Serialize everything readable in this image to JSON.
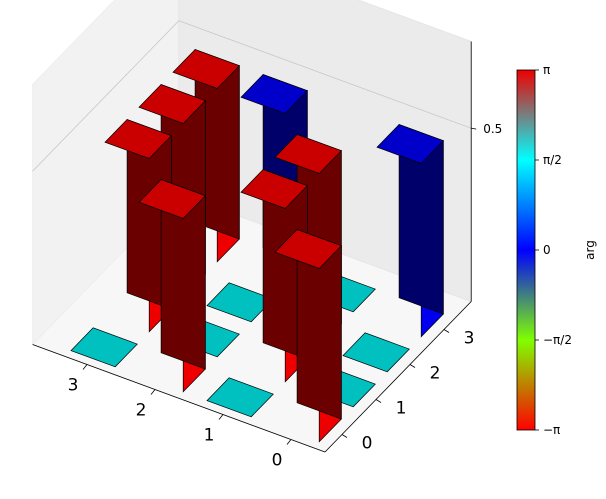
{
  "chart_data": {
    "type": "bar3d",
    "title": "",
    "x_ticks": [
      "0",
      "1",
      "2",
      "3"
    ],
    "y_ticks": [
      "0",
      "1",
      "2",
      "3"
    ],
    "z_ticks": [
      "0.5"
    ],
    "zlim": [
      0,
      0.75
    ],
    "bars": [
      {
        "i": 0,
        "j": 0,
        "height": 0.5,
        "phase": "-pi",
        "color": "#ee0000"
      },
      {
        "i": 0,
        "j": 1,
        "height": 0.0,
        "phase": "pi/2",
        "color": "#00c0c0"
      },
      {
        "i": 0,
        "j": 2,
        "height": 0.0,
        "phase": "pi/2",
        "color": "#00c0c0"
      },
      {
        "i": 0,
        "j": 3,
        "height": 0.5,
        "phase": "0",
        "color": "#0000ee"
      },
      {
        "i": 1,
        "j": 0,
        "height": 0.0,
        "phase": "pi/2",
        "color": "#00c0c0"
      },
      {
        "i": 1,
        "j": 1,
        "height": 0.5,
        "phase": "-pi",
        "color": "#ee0000"
      },
      {
        "i": 1,
        "j": 2,
        "height": 0.5,
        "phase": "-pi",
        "color": "#ee0000"
      },
      {
        "i": 1,
        "j": 3,
        "height": 0.0,
        "phase": "pi/2",
        "color": "#00c0c0"
      },
      {
        "i": 2,
        "j": 0,
        "height": 0.5,
        "phase": "-pi",
        "color": "#ee0000"
      },
      {
        "i": 2,
        "j": 1,
        "height": 0.0,
        "phase": "pi/2",
        "color": "#00c0c0"
      },
      {
        "i": 2,
        "j": 2,
        "height": 0.0,
        "phase": "pi/2",
        "color": "#00c0c0"
      },
      {
        "i": 2,
        "j": 3,
        "height": 0.5,
        "phase": "0",
        "color": "#0000ee"
      },
      {
        "i": 3,
        "j": 0,
        "height": 0.0,
        "phase": "pi/2",
        "color": "#00c0c0"
      },
      {
        "i": 3,
        "j": 1,
        "height": 0.5,
        "phase": "-pi",
        "color": "#ee0000"
      },
      {
        "i": 3,
        "j": 2,
        "height": 0.5,
        "phase": "-pi",
        "color": "#ee0000"
      },
      {
        "i": 3,
        "j": 3,
        "height": 0.5,
        "phase": "-pi",
        "color": "#ee0000"
      }
    ],
    "colorbar": {
      "label": "arg",
      "tick_labels": [
        "π",
        "π/2",
        "0",
        "−π/2",
        "−π"
      ],
      "stops": [
        "#ee0000",
        "#00ffff",
        "#0000ff",
        "#80ff00",
        "#ff0000"
      ]
    },
    "grid": true,
    "pane_color": "#f2f2f2",
    "edge_color": "#000000"
  }
}
